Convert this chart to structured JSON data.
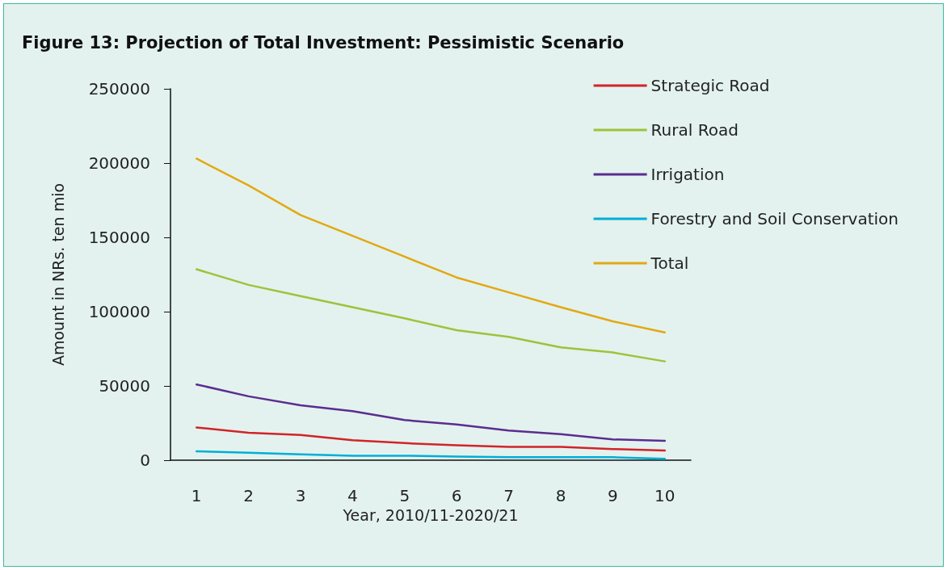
{
  "chart_data": {
    "type": "line",
    "title": "Figure 13: Projection of Total Investment: Pessimistic Scenario",
    "xlabel": "Year, 2010/11-2020/21",
    "ylabel": "Amount in NRs. ten mio",
    "categories": [
      "1",
      "2",
      "3",
      "4",
      "5",
      "6",
      "7",
      "8",
      "9",
      "10"
    ],
    "ylim": [
      0,
      250000
    ],
    "yticks": [
      0,
      50000,
      100000,
      150000,
      200000,
      250000
    ],
    "grid": false,
    "legend": "top right",
    "marker": "none",
    "line_style": "solid",
    "series": [
      {
        "name": "Strategic Road",
        "color": "#d2232a",
        "values": [
          22000,
          18500,
          17000,
          13500,
          11500,
          10000,
          9000,
          9000,
          7500,
          6500
        ]
      },
      {
        "name": "Rural Road",
        "color": "#9dc33b",
        "values": [
          128500,
          118000,
          110500,
          103000,
          95500,
          87500,
          83000,
          76000,
          72500,
          66500
        ]
      },
      {
        "name": "Irrigation",
        "color": "#5b2d8e",
        "values": [
          51000,
          43000,
          37000,
          33000,
          27000,
          24000,
          20000,
          17500,
          14000,
          13000
        ]
      },
      {
        "name": "Forestry and Soil Conservation",
        "color": "#00aed8",
        "values": [
          6000,
          5000,
          4000,
          3000,
          3000,
          2500,
          2000,
          2000,
          2000,
          1000
        ]
      },
      {
        "name": "Total",
        "color": "#e3a812",
        "values": [
          203000,
          185000,
          165000,
          151000,
          137000,
          123000,
          113000,
          103000,
          93500,
          86000
        ]
      }
    ]
  }
}
